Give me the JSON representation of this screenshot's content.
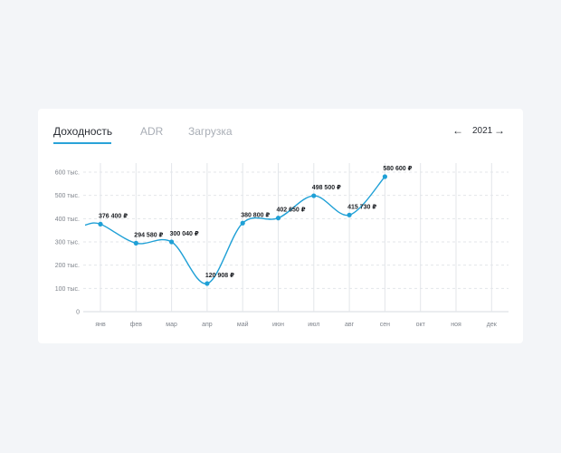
{
  "tabs": [
    {
      "label": "Доходность",
      "active": true
    },
    {
      "label": "ADR",
      "active": false
    },
    {
      "label": "Загрузка",
      "active": false
    }
  ],
  "year_nav": {
    "prev_icon": "arrow-left-icon",
    "year": "2021",
    "next_icon": "arrow-right-icon"
  },
  "colors": {
    "accent": "#2aa3d8",
    "line": "#1fa0d6",
    "grid": "#e3e6ea"
  },
  "chart_data": {
    "type": "line",
    "title": "",
    "xlabel": "",
    "ylabel": "",
    "categories": [
      "янв",
      "фев",
      "мар",
      "апр",
      "май",
      "июн",
      "июл",
      "авг",
      "сен",
      "окт",
      "ноя",
      "дек"
    ],
    "y_tick_labels": [
      "0",
      "100 тыс.",
      "200 тыс.",
      "300 тыс.",
      "400 тыс.",
      "500 тыс.",
      "600 тыс."
    ],
    "ylim": [
      0,
      600000
    ],
    "grid": true,
    "series": [
      {
        "values": [
          376400,
          294580,
          300040,
          120908,
          380800,
          402650,
          498500,
          415730,
          580600,
          null,
          null,
          null
        ],
        "labels": [
          "376 400 ₽",
          "294 580 ₽",
          "300 040 ₽",
          "120 908 ₽",
          "380 800 ₽",
          "402 650 ₽",
          "498 500 ₽",
          "415 730 ₽",
          "580 600 ₽",
          "",
          "",
          ""
        ]
      }
    ]
  }
}
